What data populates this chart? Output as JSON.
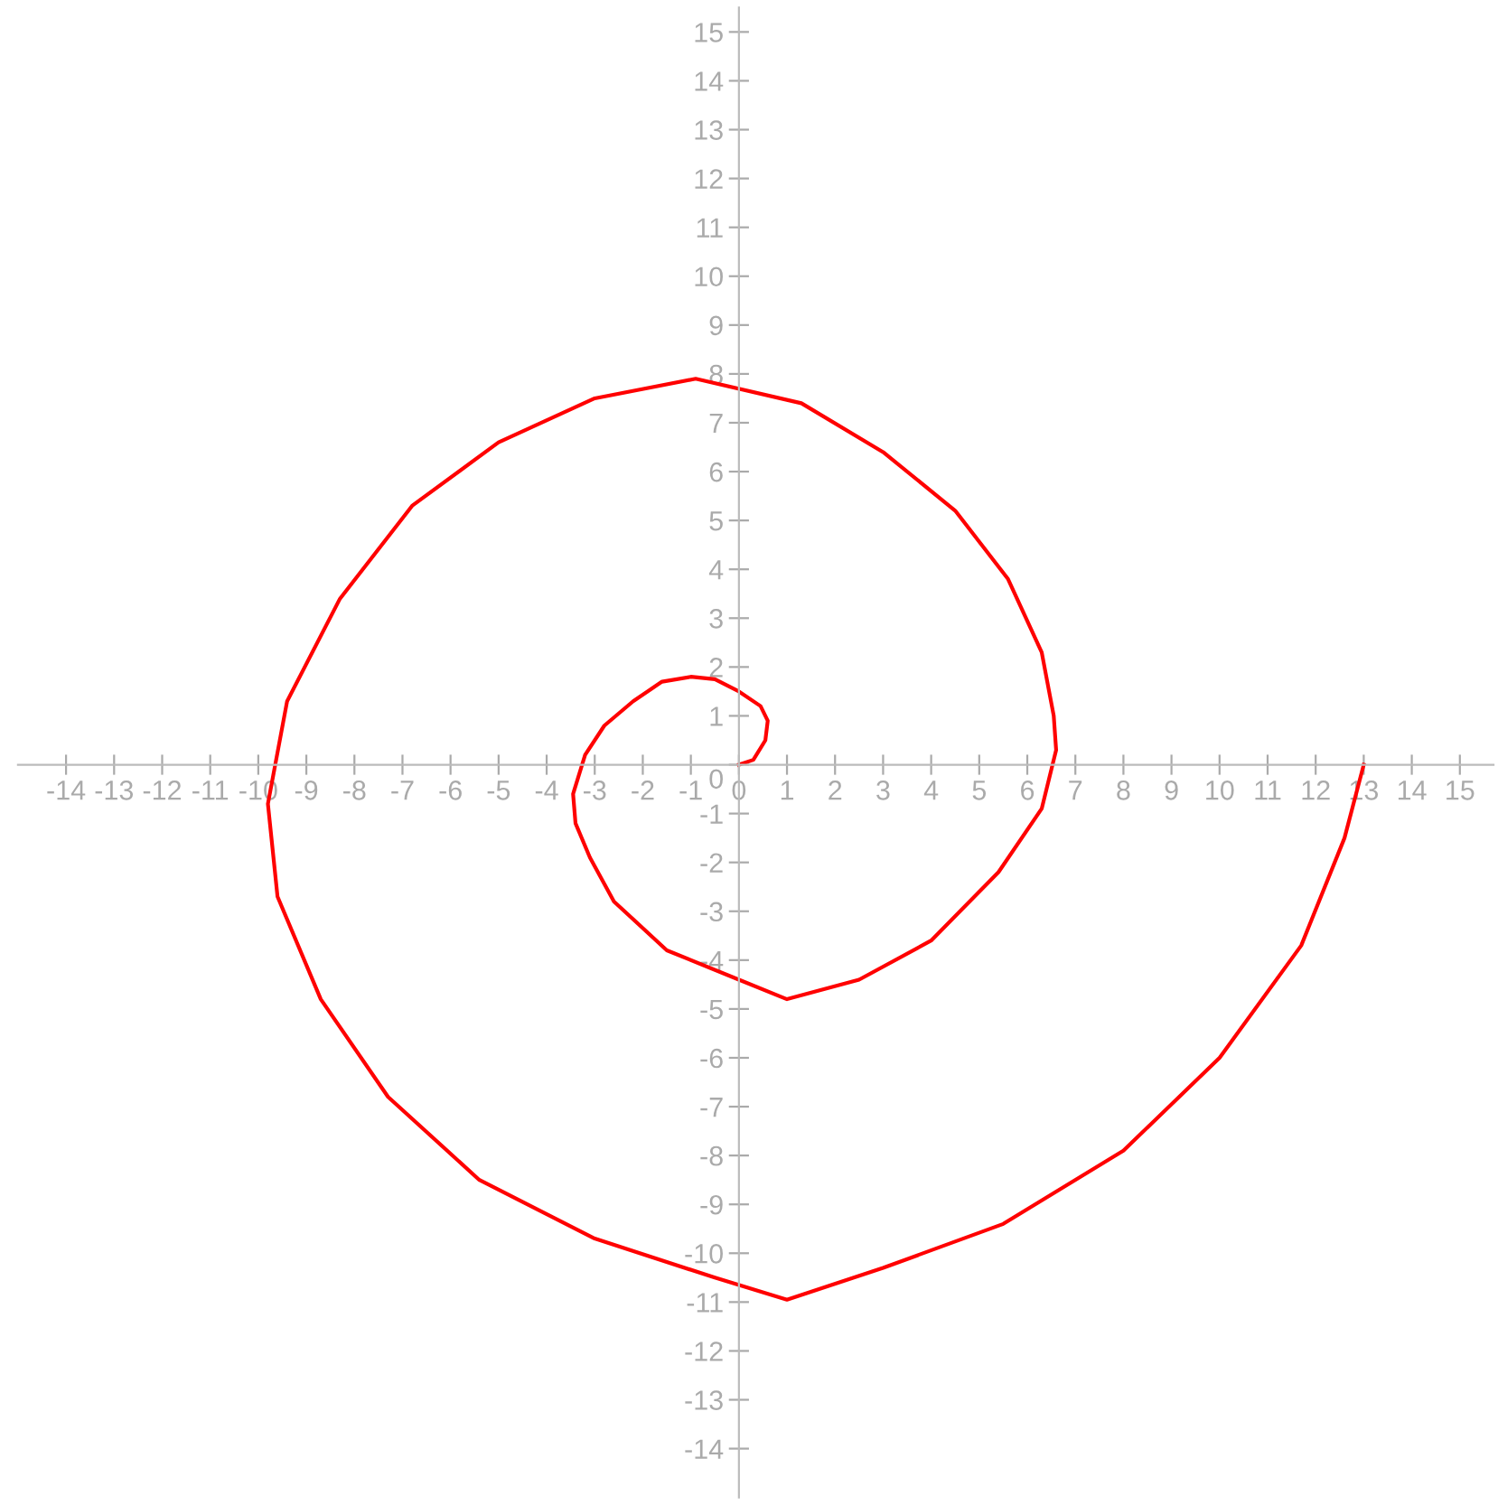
{
  "chart_data": {
    "type": "line",
    "xlim": [
      -15,
      15.7
    ],
    "ylim": [
      -15,
      15.5
    ],
    "xticks": [
      -14,
      -13,
      -12,
      -11,
      -10,
      -9,
      -8,
      -7,
      -6,
      -5,
      -4,
      -3,
      -2,
      -1,
      0,
      1,
      2,
      3,
      4,
      5,
      6,
      7,
      8,
      9,
      10,
      11,
      12,
      13,
      14,
      15
    ],
    "yticks": [
      -14,
      -13,
      -12,
      -11,
      -10,
      -9,
      -8,
      -7,
      -6,
      -5,
      -4,
      -3,
      -2,
      -1,
      0,
      1,
      2,
      3,
      4,
      5,
      6,
      7,
      8,
      9,
      10,
      11,
      12,
      13,
      14,
      15
    ],
    "grid": false,
    "marker": "none",
    "line_style": "solid",
    "series": [
      {
        "color": "#ff0000",
        "x": [
          0,
          0.3,
          0.55,
          0.6,
          0.45,
          0,
          -0.5,
          -1.0,
          -1.6,
          -2.2,
          -2.8,
          -3.2,
          -3.45,
          -3.4,
          -3.1,
          -2.6,
          -1.5,
          0,
          1,
          2.5,
          4.0,
          5.4,
          6.3,
          6.6,
          6.55,
          6.3,
          5.6,
          4.5,
          3.0,
          1.3,
          -0.9,
          -3.0,
          -5,
          -6.8,
          -8.3,
          -9.4,
          -9.8,
          -9.6,
          -8.7,
          -7.3,
          -5.4,
          -3.0,
          -0.5,
          1,
          3,
          5.5,
          8,
          10,
          11.7,
          12.6,
          13
        ],
        "values": [
          0,
          0.1,
          0.5,
          0.9,
          1.2,
          1.5,
          1.75,
          1.8,
          1.7,
          1.3,
          0.8,
          0.2,
          -0.6,
          -1.2,
          -1.9,
          -2.8,
          -3.8,
          -4.4,
          -4.8,
          -4.4,
          -3.6,
          -2.2,
          -0.9,
          0.3,
          1.0,
          2.3,
          3.8,
          5.2,
          6.4,
          7.4,
          7.9,
          7.5,
          6.6,
          5.3,
          3.4,
          1.3,
          -0.8,
          -2.7,
          -4.8,
          -6.8,
          -8.5,
          -9.7,
          -10.5,
          -10.95,
          -10.3,
          -9.4,
          -7.9,
          -6.0,
          -3.7,
          -1.5,
          0
        ]
      }
    ]
  }
}
